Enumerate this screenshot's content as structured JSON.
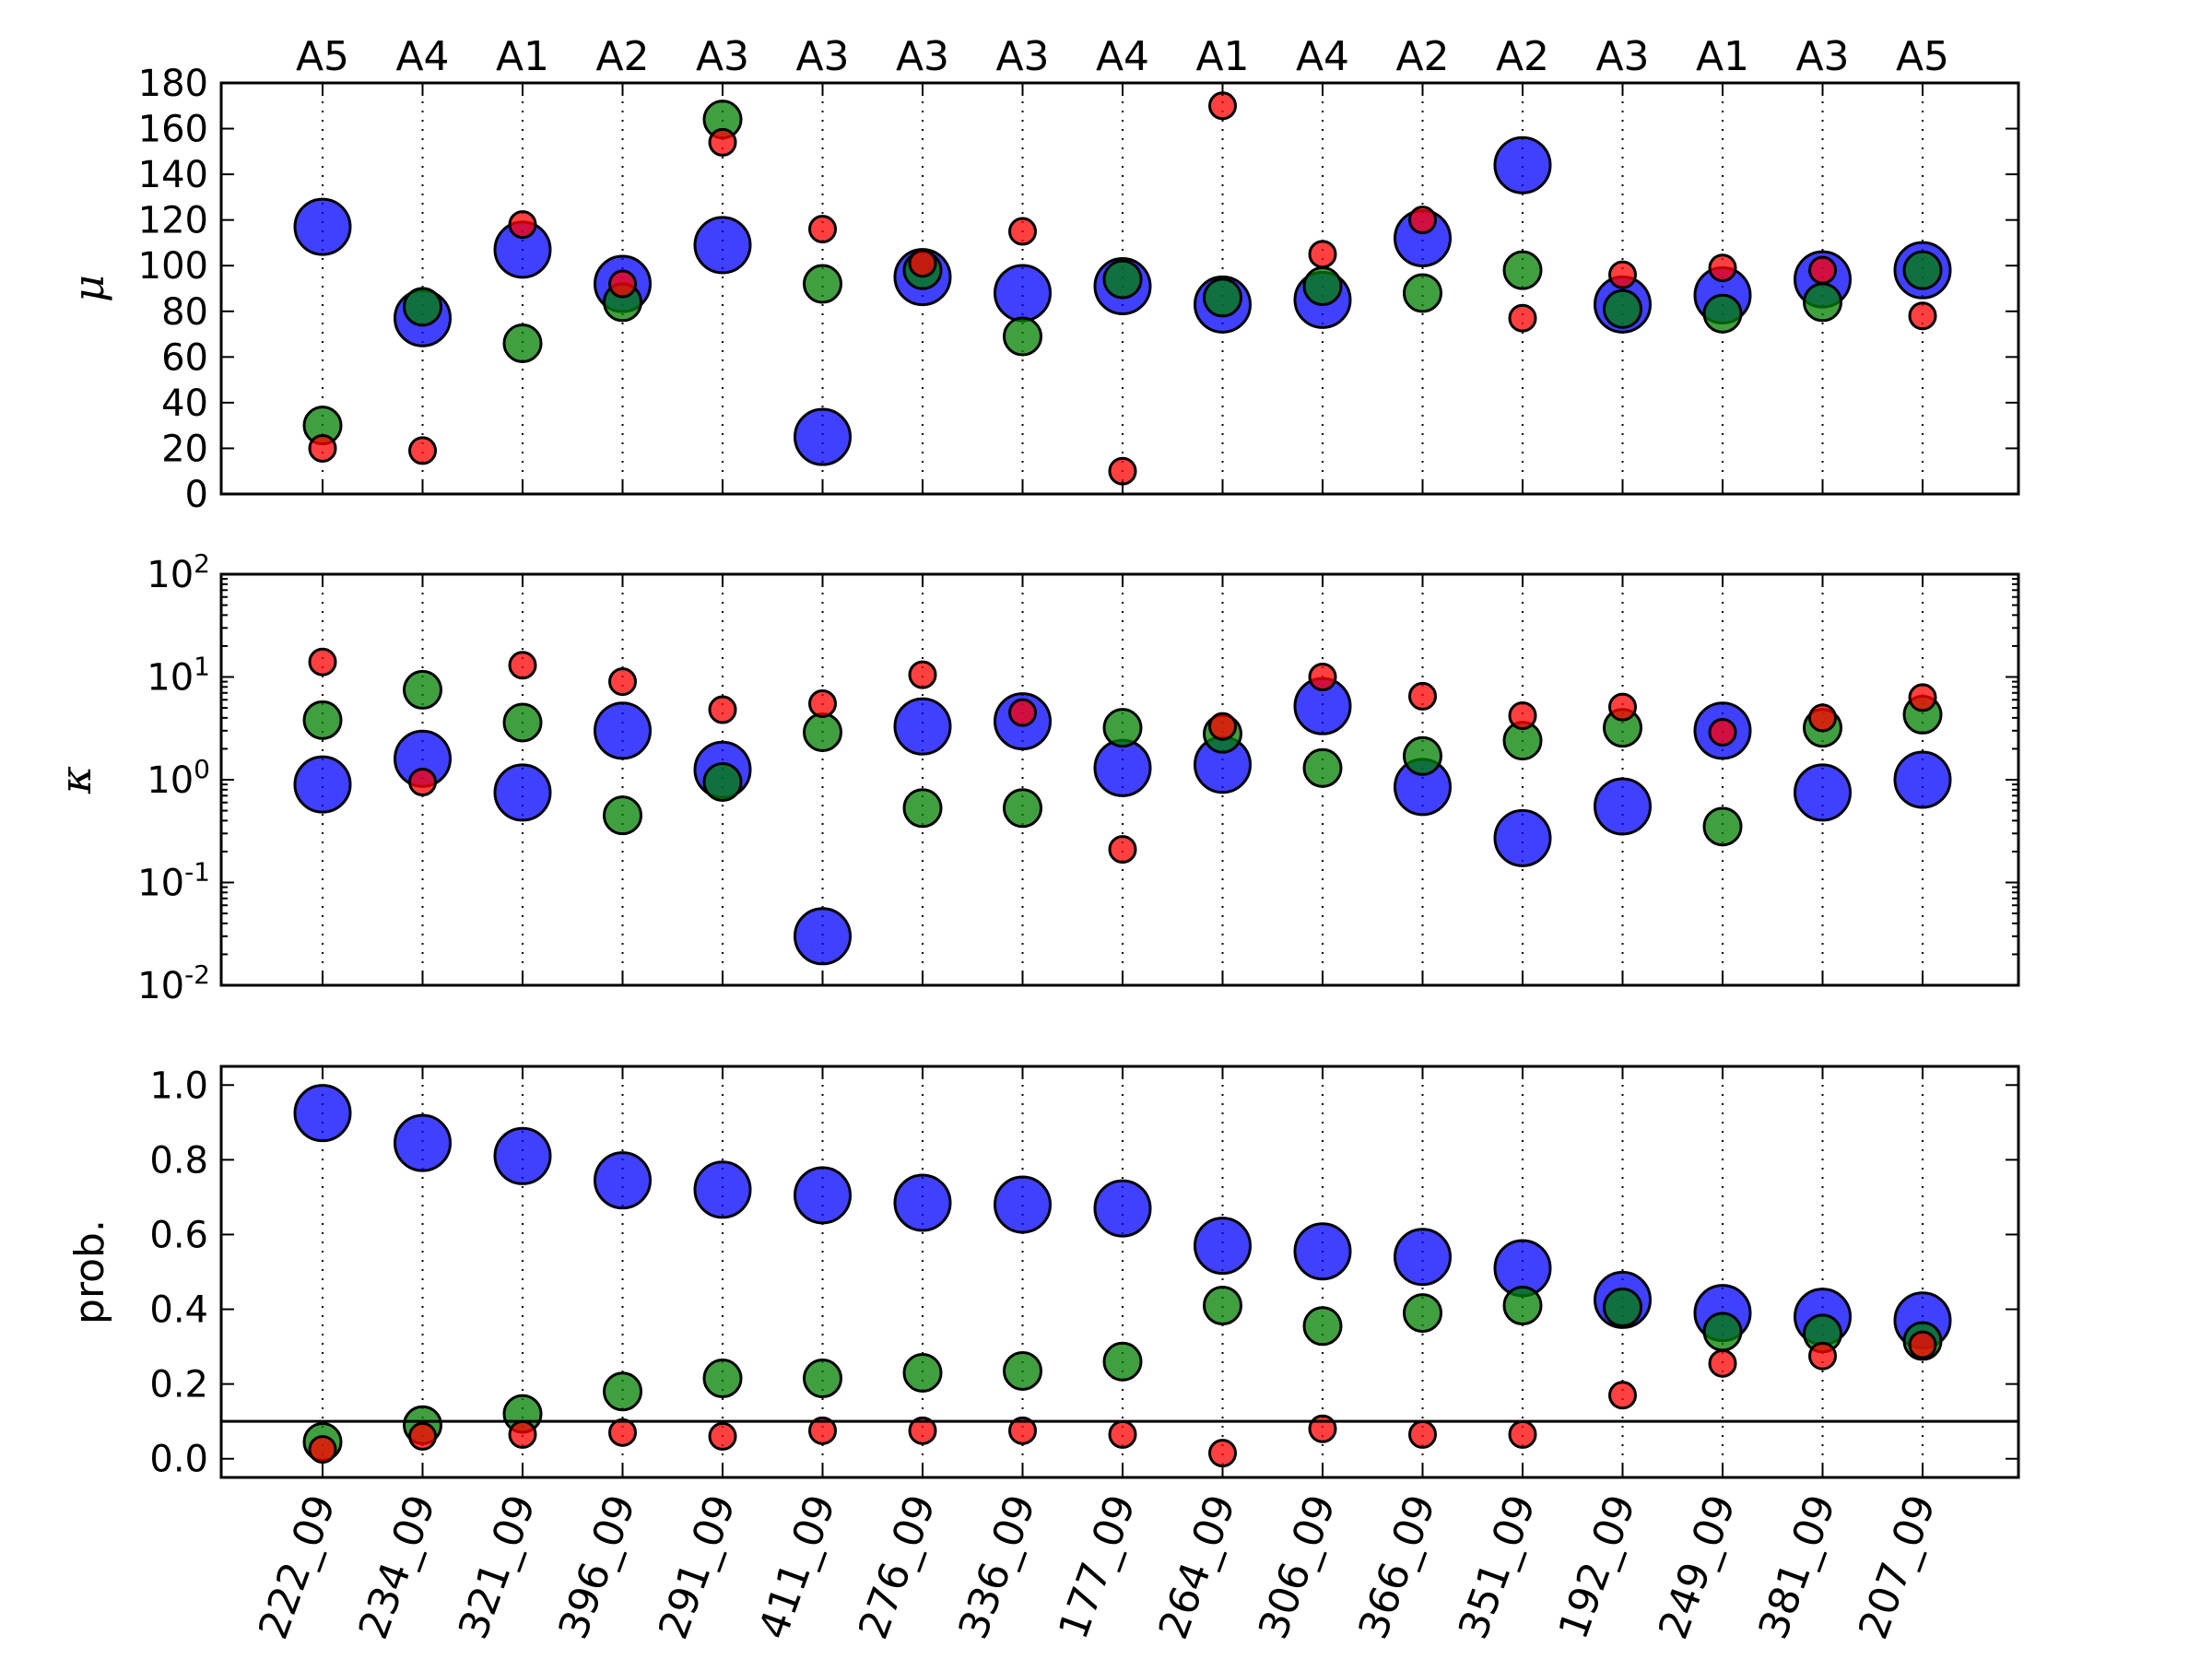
{
  "colors": {
    "blue": "#0000ff",
    "green": "#008000",
    "red": "#ff0000"
  },
  "chart_data": {
    "type": "scatter",
    "samples": [
      "222_09",
      "234_09",
      "321_09",
      "396_09",
      "291_09",
      "411_09",
      "276_09",
      "336_09",
      "177_09",
      "264_09",
      "306_09",
      "366_09",
      "351_09",
      "192_09",
      "249_09",
      "381_09",
      "207_09"
    ],
    "groups": [
      "A5",
      "A4",
      "A1",
      "A2",
      "A3",
      "A3",
      "A3",
      "A3",
      "A4",
      "A1",
      "A4",
      "A2",
      "A2",
      "A3",
      "A1",
      "A3",
      "A5"
    ],
    "panels": [
      {
        "id": "mu",
        "ylabel": "μ",
        "yscale": "linear",
        "ylim": [
          0,
          180
        ],
        "yticks": [
          0,
          20,
          40,
          60,
          80,
          100,
          120,
          140,
          160,
          180
        ],
        "series": [
          {
            "color": "blue",
            "values": [
              117,
              77,
              107,
              92,
              109,
              25,
              95,
              88,
              91,
              83,
              85,
              112,
              144,
              83,
              87,
              94,
              98
            ]
          },
          {
            "color": "green",
            "values": [
              30,
              82,
              66,
              84,
              164,
              92,
              98,
              69,
              94,
              86,
              91,
              88,
              98,
              81,
              79,
              84,
              98
            ]
          },
          {
            "color": "red",
            "values": [
              20,
              19,
              118,
              92,
              154,
              116,
              101,
              115,
              10,
              170,
              105,
              120,
              77,
              96,
              99,
              98,
              78
            ]
          }
        ]
      },
      {
        "id": "kappa",
        "ylabel": "κ",
        "yscale": "log",
        "ylim": [
          0.01,
          100
        ],
        "ytick_labels": [
          "10-2",
          "10-1",
          "100",
          "101",
          "102"
        ],
        "series": [
          {
            "color": "blue",
            "values": [
              0.9,
              1.6,
              0.75,
              3.0,
              1.25,
              0.03,
              3.3,
              3.7,
              1.3,
              1.4,
              5.2,
              0.85,
              0.27,
              0.55,
              3.0,
              0.75,
              1.0
            ]
          },
          {
            "color": "green",
            "values": [
              3.8,
              7.5,
              3.6,
              0.45,
              0.95,
              2.9,
              0.53,
              0.53,
              3.2,
              2.8,
              1.3,
              1.7,
              2.4,
              3.2,
              0.35,
              3.2,
              4.3
            ]
          },
          {
            "color": "red",
            "values": [
              14,
              0.95,
              13,
              9.0,
              4.8,
              5.5,
              10.5,
              4.5,
              0.21,
              3.3,
              10,
              6.5,
              4.2,
              5.1,
              2.9,
              4.0,
              6.3
            ]
          }
        ]
      },
      {
        "id": "prob",
        "ylabel": "prob.",
        "yscale": "linear",
        "ylim": [
          -0.05,
          1.05
        ],
        "yticks": [
          0.0,
          0.2,
          0.4,
          0.6,
          0.8,
          1.0
        ],
        "ytick_labels": [
          "0.0",
          "0.2",
          "0.4",
          "0.6",
          "0.8",
          "1.0"
        ],
        "hline": 0.1,
        "series": [
          {
            "color": "blue",
            "values": [
              0.925,
              0.845,
              0.81,
              0.745,
              0.72,
              0.705,
              0.685,
              0.68,
              0.67,
              0.57,
              0.555,
              0.54,
              0.51,
              0.425,
              0.39,
              0.38,
              0.37
            ]
          },
          {
            "color": "green",
            "values": [
              0.045,
              0.09,
              0.12,
              0.18,
              0.215,
              0.215,
              0.23,
              0.235,
              0.26,
              0.41,
              0.355,
              0.39,
              0.41,
              0.405,
              0.34,
              0.335,
              0.315
            ]
          },
          {
            "color": "red",
            "values": [
              0.025,
              0.06,
              0.065,
              0.07,
              0.06,
              0.075,
              0.075,
              0.075,
              0.065,
              0.015,
              0.08,
              0.065,
              0.065,
              0.17,
              0.255,
              0.275,
              0.305
            ]
          }
        ]
      }
    ],
    "grid": "vertical dotted lines at each sample",
    "legend": "none"
  }
}
